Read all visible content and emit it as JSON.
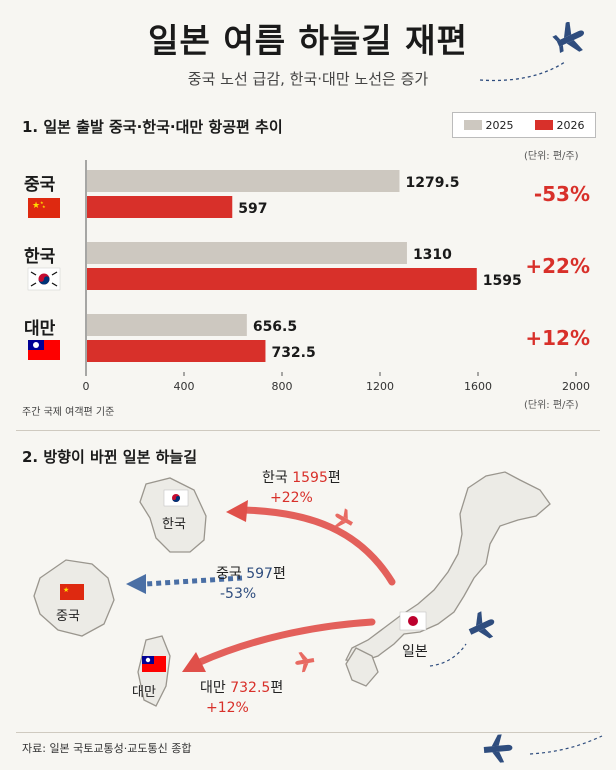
{
  "header": {
    "title": "일본 여름 하늘길 재편",
    "subtitle": "중국 노선 급감, 한국·대만 노선은 증가"
  },
  "section1": {
    "title": "1. 일본 출발 중국·한국·대만 항공편 추이",
    "unit_top": "(단위: 편/주)",
    "unit_bottom": "(단위: 편/주)",
    "footnote": "주간 국제 여객편 기준"
  },
  "section2": {
    "title": "2. 방향이 바뀐 일본 하늘길",
    "routes": [
      {
        "dest": "한국",
        "prefix": "한국 ",
        "flights": "1595",
        "suffix": "편",
        "change": "+22%"
      },
      {
        "dest": "중국",
        "prefix": "중국 ",
        "flights": "597",
        "suffix": "편",
        "change": "-53%"
      },
      {
        "dest": "대만",
        "prefix": "대만 ",
        "flights": "732.5",
        "suffix": "편",
        "change": "+12%"
      }
    ],
    "origin": "일본",
    "map_labels": {
      "korea": "한국",
      "china": "중국",
      "taiwan": "대만"
    }
  },
  "source": "자료: 일본 국토교통성·교도통신 종합",
  "colors": {
    "c2025": "#cdc8c0",
    "c2026": "#d8302a",
    "positive": "#d8302a",
    "negative": "#2f4d7e",
    "route_red": "#e0504a",
    "route_blue": "#4a6fa5",
    "plane": "#2f4d7e"
  },
  "chart_data": {
    "type": "bar",
    "orientation": "horizontal",
    "categories": [
      "중국",
      "한국",
      "대만"
    ],
    "series": [
      {
        "name": "2025",
        "values": [
          1279.5,
          1310,
          656.5
        ]
      },
      {
        "name": "2026",
        "values": [
          597,
          1595,
          732.5
        ]
      }
    ],
    "value_labels": {
      "2025": [
        "1279.5",
        "1310",
        "656.5"
      ],
      "2026": [
        "597",
        "1595",
        "732.5"
      ]
    },
    "changes": [
      "-53%",
      "+22%",
      "+12%"
    ],
    "xlim": [
      0,
      2000
    ],
    "xticks": [
      "0",
      "400",
      "800",
      "1200",
      "1600",
      "2000"
    ],
    "legend": "top-right",
    "grid": false
  }
}
